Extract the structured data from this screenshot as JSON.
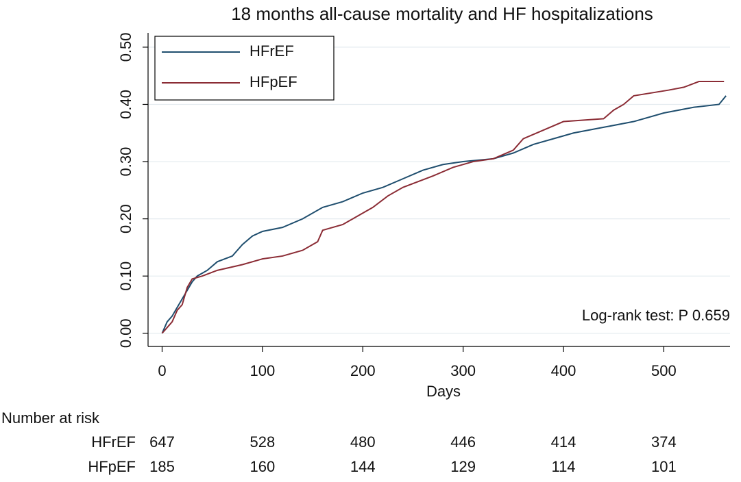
{
  "chart_data": {
    "type": "line",
    "title": "18 months all-cause mortality and HF hospitalizations",
    "x_label": "Days",
    "xlim": [
      -14,
      566
    ],
    "ylim": [
      -0.023,
      0.525
    ],
    "xticks": [
      0,
      100,
      200,
      300,
      400,
      500
    ],
    "yticks": [
      {
        "value": 0,
        "label": "0.00"
      },
      {
        "value": 0.1,
        "label": "0.10"
      },
      {
        "value": 0.2,
        "label": "0.20"
      },
      {
        "value": 0.3,
        "label": "0.30"
      },
      {
        "value": 0.4,
        "label": "0.40"
      },
      {
        "value": 0.5,
        "label": "0.50"
      }
    ],
    "grid": true,
    "legend": "top-left",
    "series": [
      {
        "name": "HFrEF",
        "color": "#1f4e6e",
        "x": [
          0,
          5,
          10,
          15,
          20,
          25,
          30,
          35,
          45,
          55,
          70,
          80,
          90,
          100,
          120,
          140,
          160,
          180,
          200,
          220,
          240,
          260,
          280,
          300,
          330,
          350,
          370,
          390,
          410,
          440,
          470,
          500,
          530,
          555,
          562
        ],
        "values": [
          0,
          0.02,
          0.03,
          0.045,
          0.06,
          0.075,
          0.09,
          0.1,
          0.11,
          0.125,
          0.135,
          0.155,
          0.17,
          0.178,
          0.185,
          0.2,
          0.22,
          0.23,
          0.245,
          0.255,
          0.27,
          0.285,
          0.295,
          0.3,
          0.305,
          0.315,
          0.33,
          0.34,
          0.35,
          0.36,
          0.37,
          0.385,
          0.395,
          0.4,
          0.415
        ]
      },
      {
        "name": "HFpEF",
        "color": "#8b2c35",
        "x": [
          0,
          5,
          10,
          15,
          20,
          25,
          30,
          40,
          55,
          80,
          100,
          120,
          140,
          155,
          160,
          180,
          190,
          200,
          210,
          225,
          240,
          270,
          290,
          310,
          330,
          350,
          360,
          380,
          400,
          440,
          450,
          460,
          470,
          505,
          520,
          535,
          560
        ],
        "values": [
          0,
          0.01,
          0.02,
          0.04,
          0.05,
          0.08,
          0.095,
          0.1,
          0.11,
          0.12,
          0.13,
          0.135,
          0.145,
          0.16,
          0.18,
          0.19,
          0.2,
          0.21,
          0.22,
          0.24,
          0.255,
          0.275,
          0.29,
          0.3,
          0.305,
          0.32,
          0.34,
          0.355,
          0.37,
          0.375,
          0.39,
          0.4,
          0.415,
          0.425,
          0.43,
          0.44,
          0.44
        ]
      }
    ],
    "annotation": "Log-rank test: P 0.659",
    "risk_table": {
      "title": "Number at risk",
      "rows": [
        {
          "label": "HFrEF",
          "values": [
            647,
            528,
            480,
            446,
            414,
            374
          ]
        },
        {
          "label": "HFpEF",
          "values": [
            185,
            160,
            144,
            129,
            114,
            101
          ]
        }
      ]
    }
  }
}
